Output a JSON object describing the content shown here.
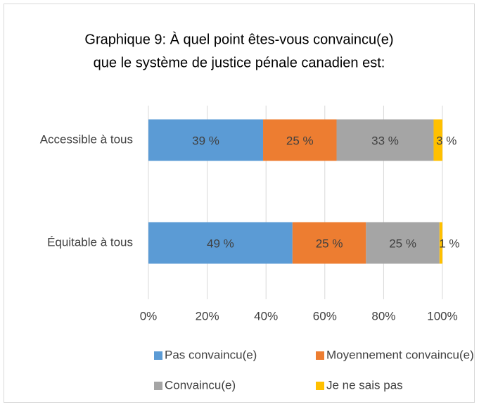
{
  "chart_data": {
    "type": "stacked_barh",
    "title": [
      "Graphique 9: À quel point êtes-vous convaincu(e)",
      "que le système de justice pénale canadien est:"
    ],
    "categories": [
      "Accessible à tous",
      "Équitable à tous"
    ],
    "series": [
      {
        "name": "Pas convaincu(e)",
        "color": "#5b9bd5",
        "values": [
          39,
          49
        ],
        "value_labels": [
          "39 %",
          "49 %"
        ]
      },
      {
        "name": "Moyennement convaincu(e)",
        "color": "#ed7d31",
        "values": [
          25,
          25
        ],
        "value_labels": [
          "25 %",
          "25 %"
        ]
      },
      {
        "name": "Convaincu(e)",
        "color": "#a5a5a5",
        "values": [
          33,
          25
        ],
        "value_labels": [
          "33 %",
          "25 %"
        ]
      },
      {
        "name": "Je ne sais pas",
        "color": "#ffc000",
        "values": [
          3,
          1
        ],
        "value_labels": [
          "3 %",
          "1 %"
        ]
      }
    ],
    "xlim": [
      0,
      100
    ],
    "xticks": [
      {
        "value": 0,
        "label": "0%"
      },
      {
        "value": 20,
        "label": "20%"
      },
      {
        "value": 40,
        "label": "40%"
      },
      {
        "value": 60,
        "label": "60%"
      },
      {
        "value": 80,
        "label": "80%"
      },
      {
        "value": 100,
        "label": "100%"
      }
    ],
    "grid": true
  }
}
